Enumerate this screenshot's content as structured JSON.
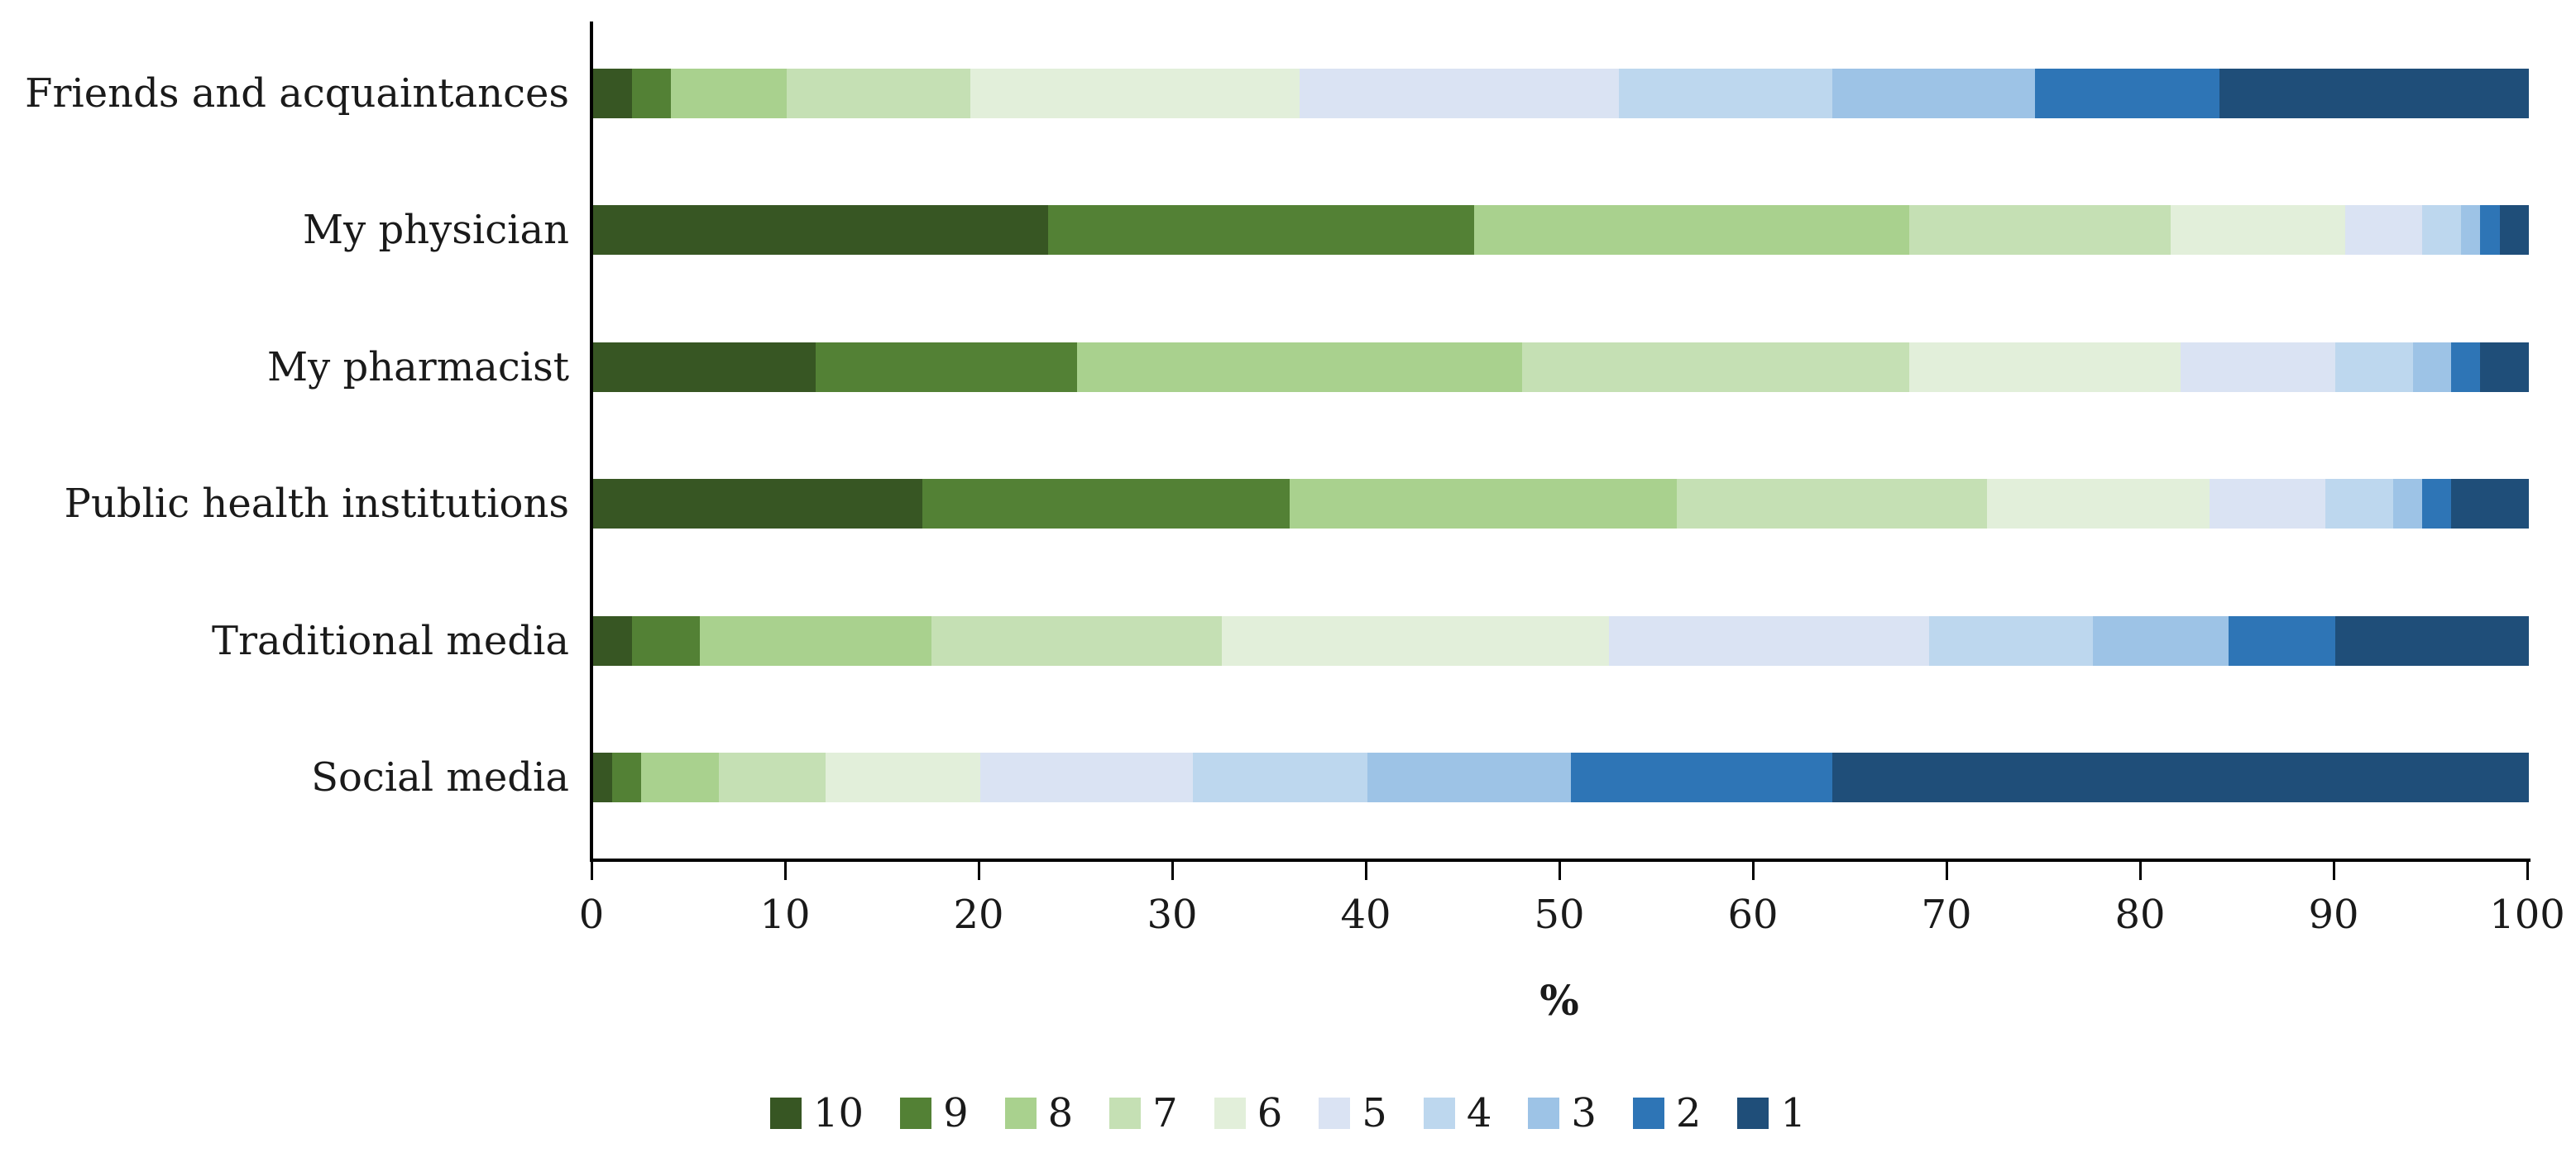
{
  "chart_data": {
    "type": "bar",
    "subtype": "horizontal_stacked_100pct",
    "title": "",
    "xlabel": "%",
    "ylabel": "",
    "xlim": [
      0,
      100
    ],
    "x_ticks": [
      0,
      10,
      20,
      30,
      40,
      50,
      60,
      70,
      80,
      90,
      100
    ],
    "grid": false,
    "legend_position": "bottom",
    "categories": [
      "Friends and acquaintances",
      "My physician",
      "My pharmacist",
      "Public health institutions",
      "Traditional media",
      "Social media"
    ],
    "legend_order": [
      "10",
      "9",
      "8",
      "7",
      "6",
      "5",
      "4",
      "3",
      "2",
      "1"
    ],
    "colors": {
      "10": "#375623",
      "9": "#538135",
      "8": "#a9d18e",
      "7": "#c5e0b4",
      "6": "#e2efda",
      "5": "#dae3f3",
      "4": "#bdd7ee",
      "3": "#9dc3e6",
      "2": "#2e75b6",
      "1": "#1f4e79"
    },
    "axis_color": "#000000",
    "series": [
      {
        "name": "10",
        "values": [
          2,
          23.5,
          11.5,
          17,
          2,
          1
        ]
      },
      {
        "name": "9",
        "values": [
          2,
          22,
          13.5,
          19,
          3.5,
          1.5
        ]
      },
      {
        "name": "8",
        "values": [
          6,
          22.5,
          23,
          20,
          12,
          4
        ]
      },
      {
        "name": "7",
        "values": [
          9.5,
          13.5,
          20,
          16,
          15,
          5.5
        ]
      },
      {
        "name": "6",
        "values": [
          17,
          9,
          14,
          11.5,
          20,
          8
        ]
      },
      {
        "name": "5",
        "values": [
          16.5,
          4,
          8,
          6,
          16.5,
          11
        ]
      },
      {
        "name": "4",
        "values": [
          11,
          2,
          4,
          3.5,
          8.5,
          9
        ]
      },
      {
        "name": "3",
        "values": [
          10.5,
          1,
          2,
          1.5,
          7,
          10.5
        ]
      },
      {
        "name": "2",
        "values": [
          9.5,
          1,
          1.5,
          1.5,
          5.5,
          13.5
        ]
      },
      {
        "name": "1",
        "values": [
          16,
          1.5,
          2.5,
          4,
          10,
          36
        ]
      }
    ]
  }
}
